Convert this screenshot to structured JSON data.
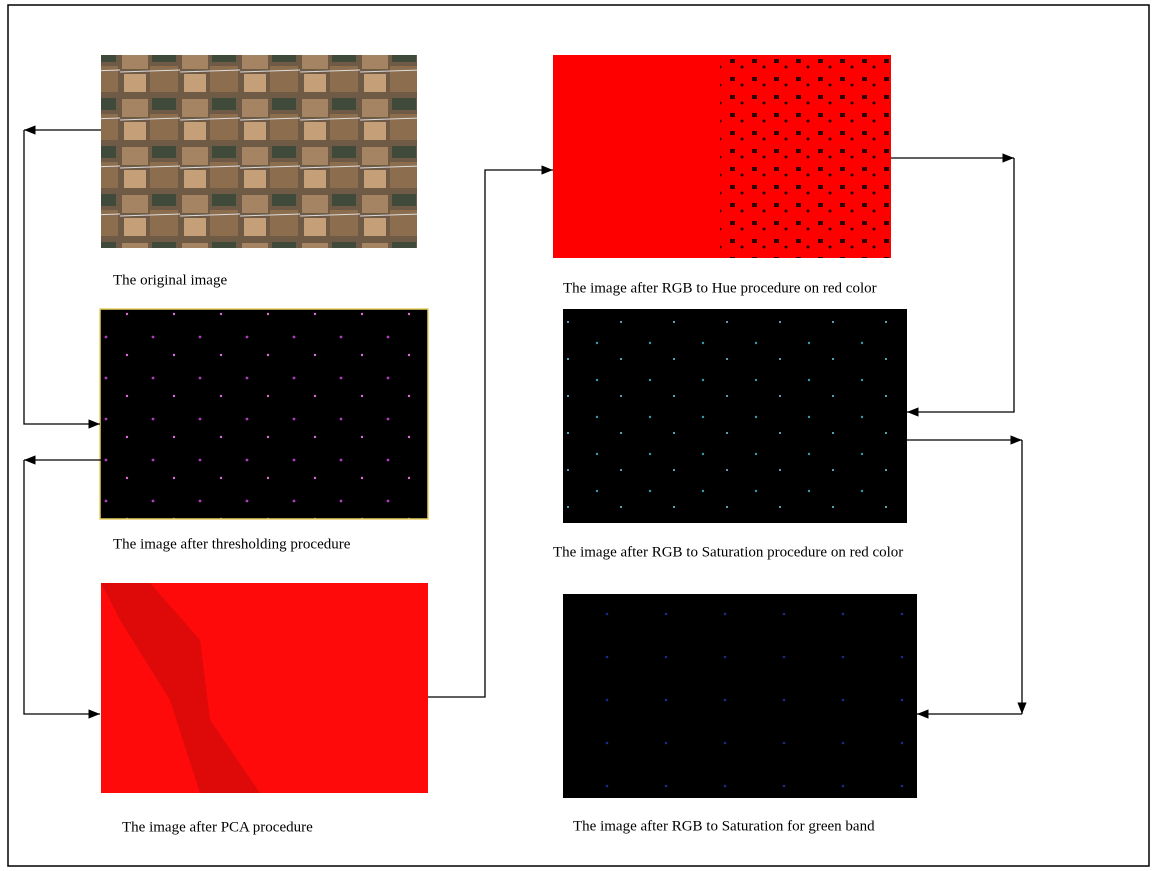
{
  "panels": [
    {
      "caption": "The original  image"
    },
    {
      "caption": "The image after thresholding procedure"
    },
    {
      "caption": "The image after PCA procedure"
    },
    {
      "caption": "The image after RGB to Hue procedure on red color"
    },
    {
      "caption": "The image after RGB to Saturation procedure on red color"
    },
    {
      "caption": "The image after RGB to Saturation for green band"
    }
  ]
}
